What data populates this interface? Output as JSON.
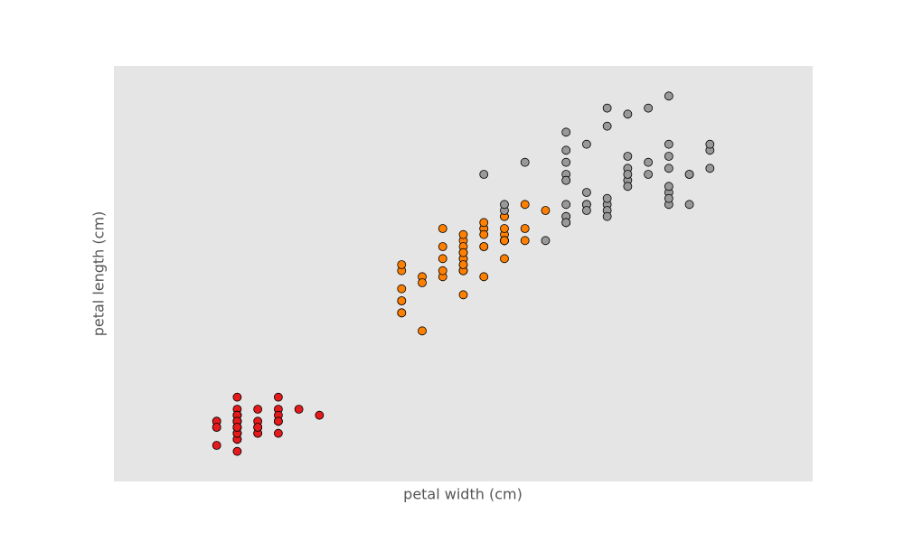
{
  "chart_data": {
    "type": "scatter",
    "xlabel": "petal width (cm)",
    "ylabel": "petal length (cm)",
    "xlim": [
      -0.4,
      3.0
    ],
    "ylim": [
      0.5,
      7.4
    ],
    "background": "#e5e5e5",
    "series": [
      {
        "color": "#e41a1c",
        "x": [
          0.2,
          0.2,
          0.2,
          0.2,
          0.2,
          0.4,
          0.3,
          0.2,
          0.2,
          0.1,
          0.2,
          0.2,
          0.1,
          0.1,
          0.2,
          0.4,
          0.4,
          0.3,
          0.3,
          0.3,
          0.2,
          0.4,
          0.2,
          0.5,
          0.2,
          0.2,
          0.4,
          0.2,
          0.2,
          0.2,
          0.2,
          0.4,
          0.1,
          0.2,
          0.2,
          0.2,
          0.2,
          0.1,
          0.2,
          0.2,
          0.3,
          0.3,
          0.2,
          0.6,
          0.4,
          0.3,
          0.2,
          0.2,
          0.2,
          0.2
        ],
        "values": [
          1.4,
          1.4,
          1.3,
          1.5,
          1.4,
          1.7,
          1.4,
          1.5,
          1.4,
          1.5,
          1.5,
          1.6,
          1.4,
          1.1,
          1.2,
          1.5,
          1.3,
          1.4,
          1.7,
          1.5,
          1.7,
          1.5,
          1.0,
          1.7,
          1.9,
          1.6,
          1.6,
          1.5,
          1.4,
          1.6,
          1.6,
          1.5,
          1.5,
          1.4,
          1.5,
          1.2,
          1.3,
          1.4,
          1.3,
          1.5,
          1.3,
          1.3,
          1.3,
          1.6,
          1.9,
          1.4,
          1.6,
          1.4,
          1.5,
          1.4
        ]
      },
      {
        "color": "#ff7f00",
        "x": [
          1.4,
          1.5,
          1.5,
          1.3,
          1.5,
          1.3,
          1.6,
          1.0,
          1.3,
          1.4,
          1.0,
          1.5,
          1.0,
          1.4,
          1.3,
          1.4,
          1.5,
          1.0,
          1.5,
          1.1,
          1.8,
          1.3,
          1.5,
          1.2,
          1.3,
          1.4,
          1.4,
          1.7,
          1.5,
          1.0,
          1.1,
          1.0,
          1.2,
          1.6,
          1.5,
          1.6,
          1.5,
          1.3,
          1.3,
          1.3,
          1.2,
          1.4,
          1.2,
          1.0,
          1.3,
          1.2,
          1.3,
          1.3,
          1.1,
          1.3
        ],
        "values": [
          4.7,
          4.5,
          4.9,
          4.0,
          4.6,
          4.5,
          4.7,
          3.3,
          4.6,
          3.9,
          3.5,
          4.2,
          4.0,
          4.7,
          3.6,
          4.4,
          4.5,
          4.1,
          4.5,
          3.9,
          4.8,
          4.0,
          4.9,
          4.7,
          4.3,
          4.4,
          4.8,
          5.0,
          4.5,
          3.5,
          3.8,
          3.7,
          3.9,
          5.1,
          4.5,
          4.5,
          4.7,
          4.4,
          4.1,
          4.0,
          4.4,
          4.6,
          4.0,
          3.3,
          4.2,
          4.2,
          4.2,
          4.3,
          3.0,
          4.1
        ]
      },
      {
        "color": "#999999",
        "x": [
          2.5,
          1.9,
          2.1,
          1.8,
          2.2,
          2.1,
          1.7,
          1.8,
          1.8,
          2.5,
          2.0,
          1.9,
          2.1,
          2.0,
          2.4,
          2.3,
          1.8,
          2.2,
          2.3,
          1.5,
          2.3,
          2.0,
          2.0,
          1.8,
          2.1,
          1.8,
          1.8,
          1.8,
          2.1,
          1.6,
          1.9,
          2.0,
          2.2,
          1.5,
          1.4,
          2.3,
          2.4,
          1.8,
          1.8,
          2.1,
          2.4,
          2.3,
          1.9,
          2.3,
          2.5,
          2.3,
          1.9,
          2.0,
          2.3,
          1.8
        ],
        "values": [
          6.0,
          5.1,
          5.9,
          5.6,
          5.8,
          6.6,
          4.5,
          6.3,
          5.8,
          6.1,
          5.1,
          5.3,
          5.5,
          5.0,
          5.1,
          5.3,
          5.5,
          6.7,
          6.9,
          5.0,
          5.7,
          4.9,
          6.7,
          4.9,
          5.7,
          6.0,
          4.8,
          4.9,
          5.6,
          5.8,
          6.1,
          6.4,
          5.6,
          5.1,
          5.6,
          6.1,
          5.6,
          5.5,
          4.8,
          5.4,
          5.6,
          5.1,
          5.1,
          5.9,
          5.7,
          5.2,
          5.0,
          5.2,
          5.4,
          5.1
        ]
      }
    ]
  }
}
